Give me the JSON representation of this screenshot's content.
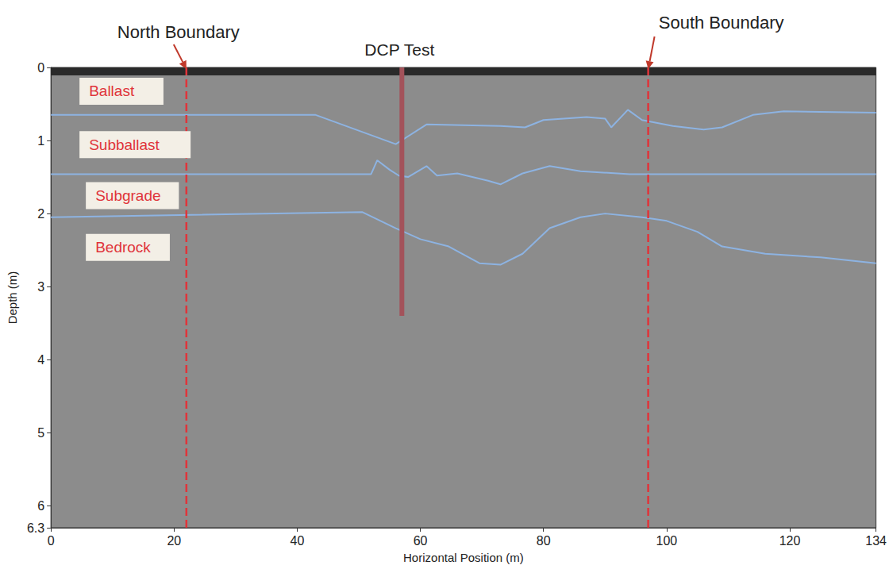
{
  "chart_data": {
    "type": "line",
    "x_label": "Horizontal Position (m)",
    "y_label": "Depth (m)",
    "xlim": [
      0,
      134
    ],
    "xticks": [
      0,
      20,
      40,
      60,
      80,
      100,
      120
    ],
    "ylim": [
      6.3,
      0
    ],
    "yticks": [
      0,
      1,
      2,
      3,
      4,
      5,
      6
    ],
    "grid": false,
    "tick_labels": true,
    "series": [
      {
        "color": "#8db3e2",
        "line_style": "solid",
        "x": [
          0,
          43,
          56,
          61,
          73,
          77,
          80,
          87,
          90,
          91,
          93.7,
          96,
          101,
          106,
          109,
          114,
          119,
          134
        ],
        "values": [
          0.65,
          0.65,
          1.05,
          0.78,
          0.8,
          0.82,
          0.72,
          0.68,
          0.7,
          0.82,
          0.58,
          0.72,
          0.8,
          0.85,
          0.82,
          0.65,
          0.6,
          0.62
        ]
      },
      {
        "color": "#8db3e2",
        "line_style": "solid",
        "x": [
          0,
          52,
          53,
          55,
          56.5,
          58,
          61,
          62.7,
          66,
          71,
          73,
          76.6,
          81,
          86,
          94,
          134
        ],
        "values": [
          1.46,
          1.46,
          1.27,
          1.4,
          1.48,
          1.5,
          1.35,
          1.48,
          1.45,
          1.55,
          1.6,
          1.45,
          1.35,
          1.42,
          1.46,
          1.46
        ]
      },
      {
        "color": "#8db3e2",
        "line_style": "solid",
        "x": [
          0,
          50.6,
          56,
          60,
          64.6,
          69.6,
          73,
          76.6,
          81,
          86,
          90,
          96,
          100,
          105,
          109,
          116,
          125,
          134
        ],
        "values": [
          2.05,
          1.98,
          2.2,
          2.35,
          2.45,
          2.68,
          2.7,
          2.55,
          2.2,
          2.05,
          2.0,
          2.05,
          2.1,
          2.25,
          2.45,
          2.55,
          2.6,
          2.68
        ]
      }
    ],
    "layers": [
      "Ballast",
      "Subballast",
      "Subgrade",
      "Bedrock"
    ],
    "boundaries": {
      "color": "#e0343a",
      "line_style": "dashed",
      "items": [
        {
          "label": "North Boundary",
          "x": 22
        },
        {
          "label": "South Boundary",
          "x": 97
        }
      ]
    },
    "dcp_test": {
      "label": "DCP Test",
      "x": 57,
      "depth": [
        0,
        3.4
      ],
      "color": "#a3525a"
    }
  }
}
